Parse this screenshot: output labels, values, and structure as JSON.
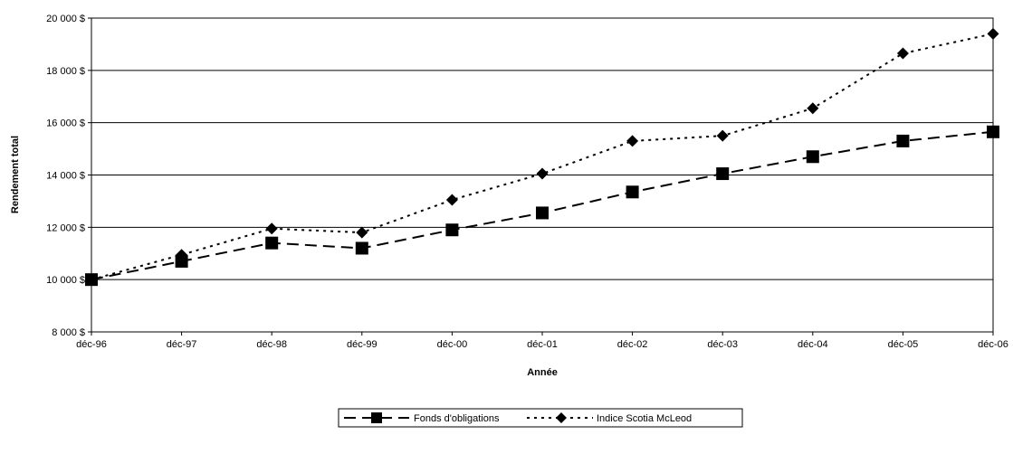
{
  "chart_data": {
    "type": "line",
    "title": "",
    "xlabel": "Année",
    "ylabel": "Rendement total",
    "categories": [
      "déc-96",
      "déc-97",
      "déc-98",
      "déc-99",
      "déc-00",
      "déc-01",
      "déc-02",
      "déc-03",
      "déc-04",
      "déc-05",
      "déc-06"
    ],
    "ylim": [
      8000,
      20000
    ],
    "yticks": [
      8000,
      10000,
      12000,
      14000,
      16000,
      18000,
      20000
    ],
    "ytick_labels": [
      "8 000 $",
      "10 000 $",
      "12 000 $",
      "14 000 $",
      "16 000 $",
      "18 000 $",
      "20 000 $"
    ],
    "grid": "horizontal",
    "legend_position": "bottom",
    "series": [
      {
        "name": "Fonds d'obligations",
        "values": [
          10000,
          10700,
          11400,
          11200,
          11900,
          12550,
          13350,
          14050,
          14700,
          15300,
          15650
        ],
        "marker": "square",
        "dash": "long-dash",
        "color": "#000000"
      },
      {
        "name": "Indice Scotia McLeod",
        "values": [
          10000,
          10950,
          11950,
          11800,
          13050,
          14050,
          15300,
          15500,
          16550,
          18650,
          19400
        ],
        "marker": "diamond",
        "dash": "dotted",
        "color": "#000000"
      }
    ]
  }
}
